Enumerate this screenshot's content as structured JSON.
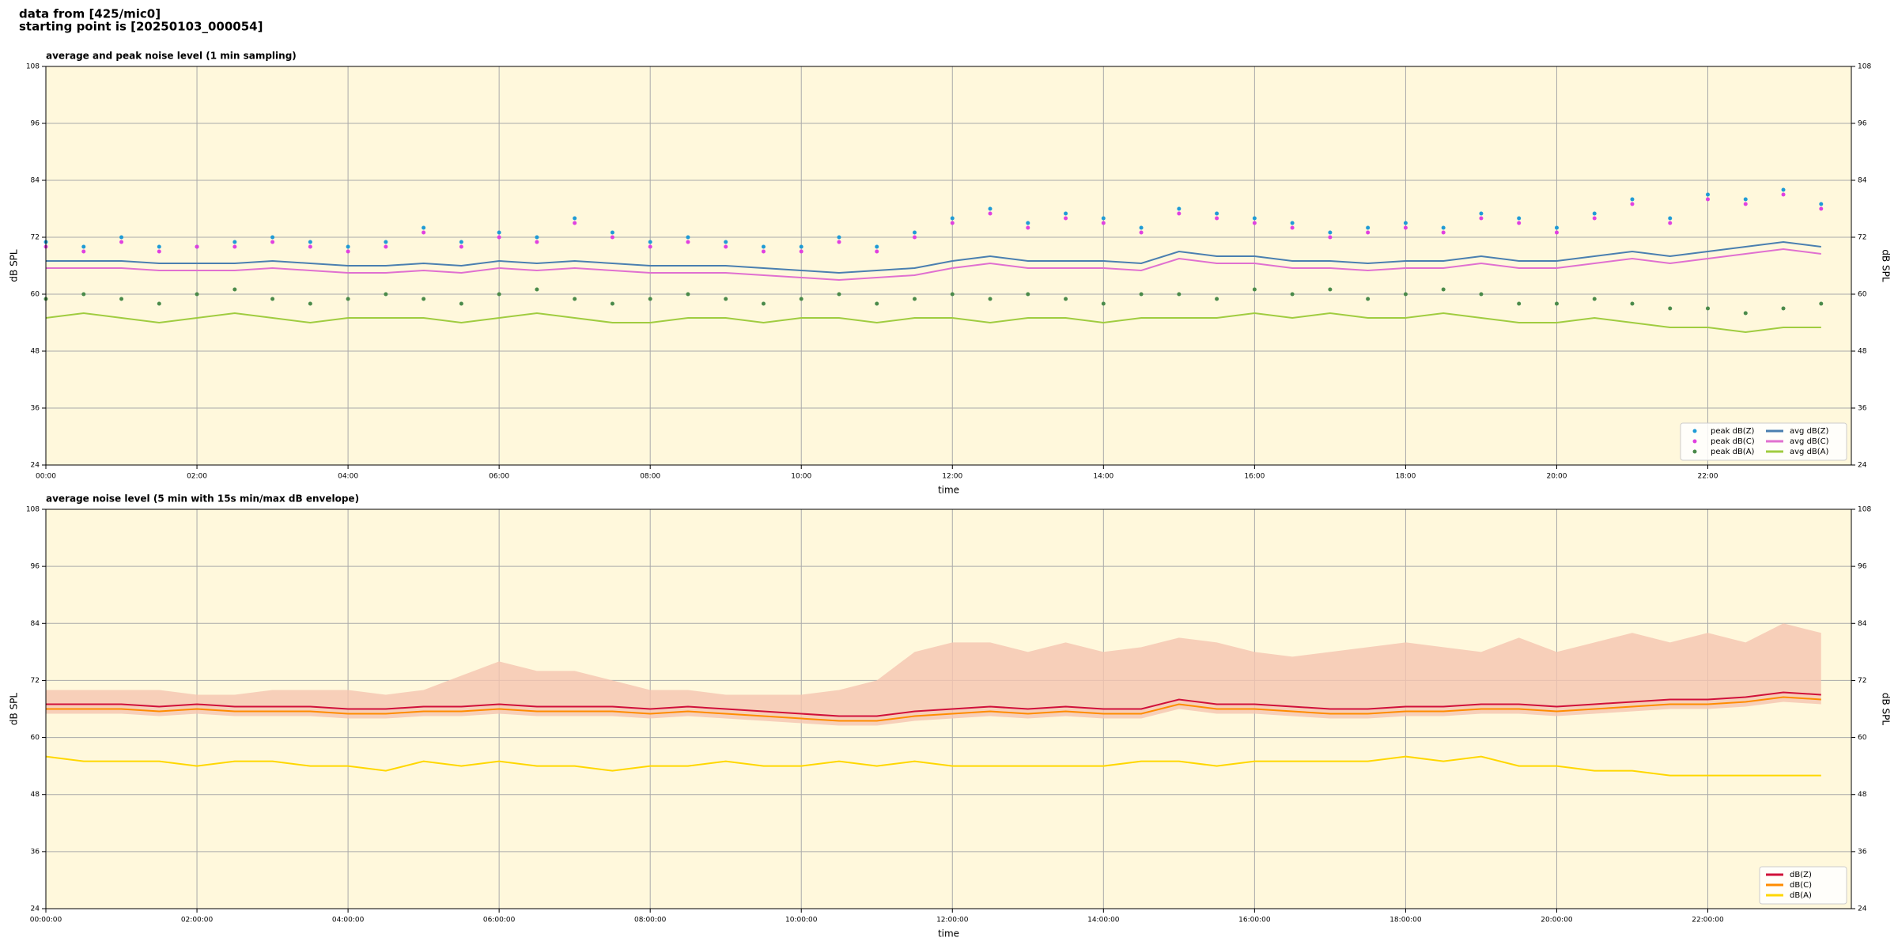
{
  "header": {
    "lines": [
      "data from [425/mic0]",
      "starting point is [20250103_000054]"
    ]
  },
  "chart_data": [
    {
      "type": "line",
      "title": "average and peak noise level (1 min sampling)",
      "xlabel": "time",
      "ylabel": "dB SPL",
      "xlim": [
        0,
        23.9
      ],
      "ylim": [
        24,
        108
      ],
      "yticks": [
        24,
        36,
        48,
        60,
        72,
        84,
        96,
        108
      ],
      "grid": true,
      "legend": "lower right",
      "background": "#fff8dc",
      "xticks": [
        {
          "value": 0,
          "label": "00:00"
        },
        {
          "value": 2,
          "label": "02:00"
        },
        {
          "value": 4,
          "label": "04:00"
        },
        {
          "value": 6,
          "label": "06:00"
        },
        {
          "value": 8,
          "label": "08:00"
        },
        {
          "value": 10,
          "label": "10:00"
        },
        {
          "value": 12,
          "label": "12:00"
        },
        {
          "value": 14,
          "label": "14:00"
        },
        {
          "value": 16,
          "label": "16:00"
        },
        {
          "value": 18,
          "label": "18:00"
        },
        {
          "value": 20,
          "label": "20:00"
        },
        {
          "value": 22,
          "label": "22:00"
        }
      ],
      "x": [
        0,
        0.5,
        1,
        1.5,
        2,
        2.5,
        3,
        3.5,
        4,
        4.5,
        5,
        5.5,
        6,
        6.5,
        7,
        7.5,
        8,
        8.5,
        9,
        9.5,
        10,
        10.5,
        11,
        11.5,
        12,
        12.5,
        13,
        13.5,
        14,
        14.5,
        15,
        15.5,
        16,
        16.5,
        17,
        17.5,
        18,
        18.5,
        19,
        19.5,
        20,
        20.5,
        21,
        21.5,
        22,
        22.5,
        23,
        23.5
      ],
      "series": [
        {
          "name": "peak dB(Z)",
          "kind": "scatter",
          "color": "#1f9bd6",
          "values": [
            71,
            70,
            72,
            70,
            70,
            71,
            72,
            71,
            70,
            71,
            74,
            71,
            73,
            72,
            76,
            73,
            71,
            72,
            71,
            70,
            70,
            72,
            70,
            73,
            76,
            78,
            75,
            77,
            76,
            74,
            78,
            77,
            76,
            75,
            73,
            74,
            75,
            74,
            77,
            76,
            74,
            77,
            80,
            76,
            81,
            80,
            82,
            79
          ]
        },
        {
          "name": "peak dB(C)",
          "kind": "scatter",
          "color": "#e040e0",
          "values": [
            70,
            69,
            71,
            69,
            70,
            70,
            71,
            70,
            69,
            70,
            73,
            70,
            72,
            71,
            75,
            72,
            70,
            71,
            70,
            69,
            69,
            71,
            69,
            72,
            75,
            77,
            74,
            76,
            75,
            73,
            77,
            76,
            75,
            74,
            72,
            73,
            74,
            73,
            76,
            75,
            73,
            76,
            79,
            75,
            80,
            79,
            81,
            78
          ]
        },
        {
          "name": "peak dB(A)",
          "kind": "scatter",
          "color": "#4a8a4a",
          "values": [
            59,
            60,
            59,
            58,
            60,
            61,
            59,
            58,
            59,
            60,
            59,
            58,
            60,
            61,
            59,
            58,
            59,
            60,
            59,
            58,
            59,
            60,
            58,
            59,
            60,
            59,
            60,
            59,
            58,
            60,
            60,
            59,
            61,
            60,
            61,
            59,
            60,
            61,
            60,
            58,
            58,
            59,
            58,
            57,
            57,
            56,
            57,
            58
          ]
        },
        {
          "name": "avg dB(Z)",
          "kind": "line",
          "color": "#4a7fb0",
          "values": [
            67,
            67,
            67,
            66.5,
            66.5,
            66.5,
            67,
            66.5,
            66,
            66,
            66.5,
            66,
            67,
            66.5,
            67,
            66.5,
            66,
            66,
            66,
            65.5,
            65,
            64.5,
            65,
            65.5,
            67,
            68,
            67,
            67,
            67,
            66.5,
            69,
            68,
            68,
            67,
            67,
            66.5,
            67,
            67,
            68,
            67,
            67,
            68,
            69,
            68,
            69,
            70,
            71,
            70
          ]
        },
        {
          "name": "avg dB(C)",
          "kind": "line",
          "color": "#e070d0",
          "values": [
            65.5,
            65.5,
            65.5,
            65,
            65,
            65,
            65.5,
            65,
            64.5,
            64.5,
            65,
            64.5,
            65.5,
            65,
            65.5,
            65,
            64.5,
            64.5,
            64.5,
            64,
            63.5,
            63,
            63.5,
            64,
            65.5,
            66.5,
            65.5,
            65.5,
            65.5,
            65,
            67.5,
            66.5,
            66.5,
            65.5,
            65.5,
            65,
            65.5,
            65.5,
            66.5,
            65.5,
            65.5,
            66.5,
            67.5,
            66.5,
            67.5,
            68.5,
            69.5,
            68.5
          ]
        },
        {
          "name": "avg dB(A)",
          "kind": "line",
          "color": "#a0cc40",
          "values": [
            55,
            56,
            55,
            54,
            55,
            56,
            55,
            54,
            55,
            55,
            55,
            54,
            55,
            56,
            55,
            54,
            54,
            55,
            55,
            54,
            55,
            55,
            54,
            55,
            55,
            54,
            55,
            55,
            54,
            55,
            55,
            55,
            56,
            55,
            56,
            55,
            55,
            56,
            55,
            54,
            54,
            55,
            54,
            53,
            53,
            52,
            53,
            53
          ]
        }
      ]
    },
    {
      "type": "line",
      "title": "average noise level (5 min with 15s min/max dB envelope)",
      "xlabel": "time",
      "ylabel": "dB SPL",
      "xlim": [
        0,
        23.9
      ],
      "ylim": [
        24,
        108
      ],
      "yticks": [
        24,
        36,
        48,
        60,
        72,
        84,
        96,
        108
      ],
      "grid": true,
      "legend": "lower right",
      "background": "#fff8dc",
      "xticks": [
        {
          "value": 0,
          "label": "00:00:00"
        },
        {
          "value": 2,
          "label": "02:00:00"
        },
        {
          "value": 4,
          "label": "04:00:00"
        },
        {
          "value": 6,
          "label": "06:00:00"
        },
        {
          "value": 8,
          "label": "08:00:00"
        },
        {
          "value": 10,
          "label": "10:00:00"
        },
        {
          "value": 12,
          "label": "12:00:00"
        },
        {
          "value": 14,
          "label": "14:00:00"
        },
        {
          "value": 16,
          "label": "16:00:00"
        },
        {
          "value": 18,
          "label": "18:00:00"
        },
        {
          "value": 20,
          "label": "20:00:00"
        },
        {
          "value": 22,
          "label": "22:00:00"
        }
      ],
      "x": [
        0,
        0.5,
        1,
        1.5,
        2,
        2.5,
        3,
        3.5,
        4,
        4.5,
        5,
        5.5,
        6,
        6.5,
        7,
        7.5,
        8,
        8.5,
        9,
        9.5,
        10,
        10.5,
        11,
        11.5,
        12,
        12.5,
        13,
        13.5,
        14,
        14.5,
        15,
        15.5,
        16,
        16.5,
        17,
        17.5,
        18,
        18.5,
        19,
        19.5,
        20,
        20.5,
        21,
        21.5,
        22,
        22.5,
        23,
        23.5
      ],
      "envelope": {
        "color": "#f5c4b0",
        "high": [
          70,
          70,
          70,
          70,
          69,
          69,
          70,
          70,
          70,
          69,
          70,
          73,
          76,
          74,
          74,
          72,
          70,
          70,
          69,
          69,
          69,
          70,
          72,
          78,
          80,
          80,
          78,
          80,
          78,
          79,
          81,
          80,
          78,
          77,
          78,
          79,
          80,
          79,
          78,
          81,
          78,
          80,
          82,
          80,
          82,
          80,
          84,
          82
        ],
        "low": [
          65,
          65,
          65,
          64.5,
          65,
          64.5,
          64.5,
          64.5,
          64,
          64,
          64.5,
          64.5,
          65,
          64.5,
          64.5,
          64.5,
          64,
          64.5,
          64,
          63.5,
          63,
          62.5,
          62.5,
          63.5,
          64,
          64.5,
          64,
          64.5,
          64,
          64,
          66,
          65,
          65,
          64.5,
          64,
          64,
          64.5,
          64.5,
          65,
          65,
          64.5,
          65,
          65.5,
          66,
          66,
          66.5,
          67.5,
          67
        ]
      },
      "series": [
        {
          "name": "dB(Z)",
          "kind": "line",
          "color": "#d0103a",
          "values": [
            67,
            67,
            67,
            66.5,
            67,
            66.5,
            66.5,
            66.5,
            66,
            66,
            66.5,
            66.5,
            67,
            66.5,
            66.5,
            66.5,
            66,
            66.5,
            66,
            65.5,
            65,
            64.5,
            64.5,
            65.5,
            66,
            66.5,
            66,
            66.5,
            66,
            66,
            68,
            67,
            67,
            66.5,
            66,
            66,
            66.5,
            66.5,
            67,
            67,
            66.5,
            67,
            67.5,
            68,
            68,
            68.5,
            69.5,
            69
          ]
        },
        {
          "name": "dB(C)",
          "kind": "line",
          "color": "#ff8c00",
          "values": [
            66,
            66,
            66,
            65.5,
            66,
            65.5,
            65.5,
            65.5,
            65,
            65,
            65.5,
            65.5,
            66,
            65.5,
            65.5,
            65.5,
            65,
            65.5,
            65,
            64.5,
            64,
            63.5,
            63.5,
            64.5,
            65,
            65.5,
            65,
            65.5,
            65,
            65,
            67,
            66,
            66,
            65.5,
            65,
            65,
            65.5,
            65.5,
            66,
            66,
            65.5,
            66,
            66.5,
            67,
            67,
            67.5,
            68.5,
            68
          ]
        },
        {
          "name": "dB(A)",
          "kind": "line",
          "color": "#ffd700",
          "values": [
            56,
            55,
            55,
            55,
            54,
            55,
            55,
            54,
            54,
            53,
            55,
            54,
            55,
            54,
            54,
            53,
            54,
            54,
            55,
            54,
            54,
            55,
            54,
            55,
            54,
            54,
            54,
            54,
            54,
            55,
            55,
            54,
            55,
            55,
            55,
            55,
            56,
            55,
            56,
            54,
            54,
            53,
            53,
            52,
            52,
            52,
            52,
            52
          ]
        }
      ]
    }
  ]
}
